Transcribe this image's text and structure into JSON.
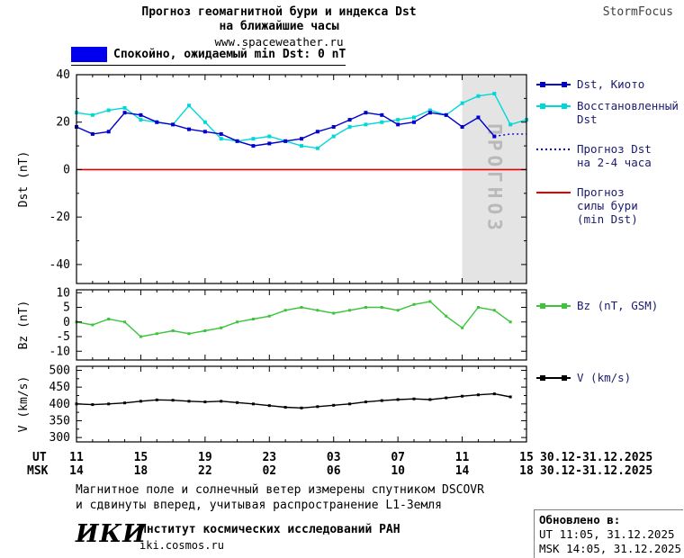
{
  "header": {
    "title_line1": "Прогноз геомагнитной бури и индекса Dst",
    "title_line2": "на ближайшие часы",
    "url": "www.spaceweather.ru",
    "brand": "StormFocus"
  },
  "status_legend": {
    "box_color": "#0000EE",
    "label": "Спокойно, ожидаемый min Dst: 0 nT"
  },
  "legend": {
    "items": [
      {
        "label": "Dst, Киото",
        "color": "#0000CD",
        "style": "solid",
        "markers": true
      },
      {
        "label": "Восстановленный\nDst",
        "color": "#00D8D8",
        "style": "solid",
        "markers": true
      },
      {
        "label": "Прогноз Dst\nна 2-4 часа",
        "color": "#0000CD",
        "style": "dotted",
        "markers": false
      },
      {
        "label": "Прогноз\nсилы бури\n(min Dst)",
        "color": "#E60000",
        "style": "solid",
        "markers": false
      },
      {
        "label": "Bz (nT, GSM)",
        "color": "#3CC43C",
        "style": "solid",
        "markers": true
      },
      {
        "label": "V (km/s)",
        "color": "#000000",
        "style": "solid",
        "markers": true
      }
    ]
  },
  "chart_data": [
    {
      "type": "line",
      "ylabel": "Dst (nT)",
      "ylim": [
        -48,
        40
      ],
      "yticks": [
        40,
        20,
        0,
        -20,
        -40
      ],
      "yticks_minor": [
        30,
        10,
        -10,
        -30
      ],
      "reference_line": {
        "value": 0,
        "color": "#E60000",
        "name": "Прогноз силы бури (min Dst)"
      },
      "forecast_region": {
        "start_hour": 24,
        "end_hour": 28,
        "label": "ПРОГНОЗ"
      },
      "series": [
        {
          "name": "Восстановленный Dst",
          "color": "#00D8D8",
          "markers": true,
          "marker_size": 4,
          "values": [
            24,
            23,
            25,
            26,
            21,
            20,
            19,
            27,
            20,
            13,
            12,
            13,
            14,
            12,
            10,
            9,
            14,
            18,
            19,
            20,
            21,
            22,
            25,
            23,
            28,
            31,
            32,
            19,
            21
          ]
        },
        {
          "name": "Dst, Киото",
          "color": "#0000CD",
          "markers": true,
          "marker_size": 4,
          "values": [
            18,
            15,
            16,
            24,
            23,
            20,
            19,
            17,
            16,
            15,
            12,
            10,
            11,
            12,
            13,
            16,
            18,
            21,
            24,
            23,
            19,
            20,
            24,
            23,
            18,
            22,
            14
          ]
        },
        {
          "name": "Прогноз Dst на 2-4 часа",
          "color": "#0000CD",
          "style": "dotted",
          "markers": false,
          "x": [
            26,
            27,
            28
          ],
          "values": [
            14,
            15,
            15
          ]
        }
      ]
    },
    {
      "type": "line",
      "ylabel": "Bz (nT)",
      "ylim": [
        -13,
        11
      ],
      "yticks": [
        10,
        5,
        0,
        -5,
        -10
      ],
      "series": [
        {
          "name": "Bz (nT, GSM)",
          "color": "#3CC43C",
          "markers": true,
          "marker_size": 3,
          "values": [
            0,
            -1,
            1,
            0,
            -5,
            -4,
            -3,
            -4,
            -3,
            -2,
            0,
            1,
            2,
            4,
            5,
            4,
            3,
            4,
            5,
            5,
            4,
            6,
            7,
            2,
            -2,
            5,
            4,
            0
          ]
        }
      ]
    },
    {
      "type": "line",
      "ylabel": "V (km/s)",
      "ylim": [
        287,
        512
      ],
      "yticks": [
        500,
        450,
        400,
        350,
        300
      ],
      "yticks_minor": [
        475,
        425,
        375,
        325
      ],
      "series": [
        {
          "name": "V (km/s)",
          "color": "#000000",
          "markers": true,
          "marker_size": 3,
          "values": [
            400,
            398,
            400,
            403,
            408,
            412,
            411,
            408,
            406,
            408,
            404,
            400,
            395,
            390,
            388,
            392,
            396,
            400,
            406,
            410,
            413,
            415,
            413,
            418,
            423,
            427,
            430,
            421
          ]
        }
      ]
    }
  ],
  "xaxis": {
    "hours_span": 28,
    "major_every": 4,
    "ut_label": "UT",
    "msk_label": "MSK",
    "ut_ticks": [
      "11",
      "15",
      "19",
      "23",
      "03",
      "07",
      "11",
      "15"
    ],
    "msk_ticks": [
      "14",
      "18",
      "22",
      "02",
      "06",
      "10",
      "14",
      "18"
    ],
    "ut_date": "30.12-31.12.2025",
    "msk_date": "30.12-31.12.2025"
  },
  "footer": {
    "note_line1": "Магнитное поле и солнечный ветер измерены спутником DSCOVR",
    "note_line2": "и сдвинуты вперед, учитывая распространение L1-Земля",
    "updated_label": "Обновлено в:",
    "updated_ut": "UT  11:05, 31.12.2025",
    "updated_msk": "MSK 14:05, 31.12.2025",
    "logo": "ИКИ",
    "institute": "Институт космических исследований РАН",
    "site": "iki.cosmos.ru"
  }
}
